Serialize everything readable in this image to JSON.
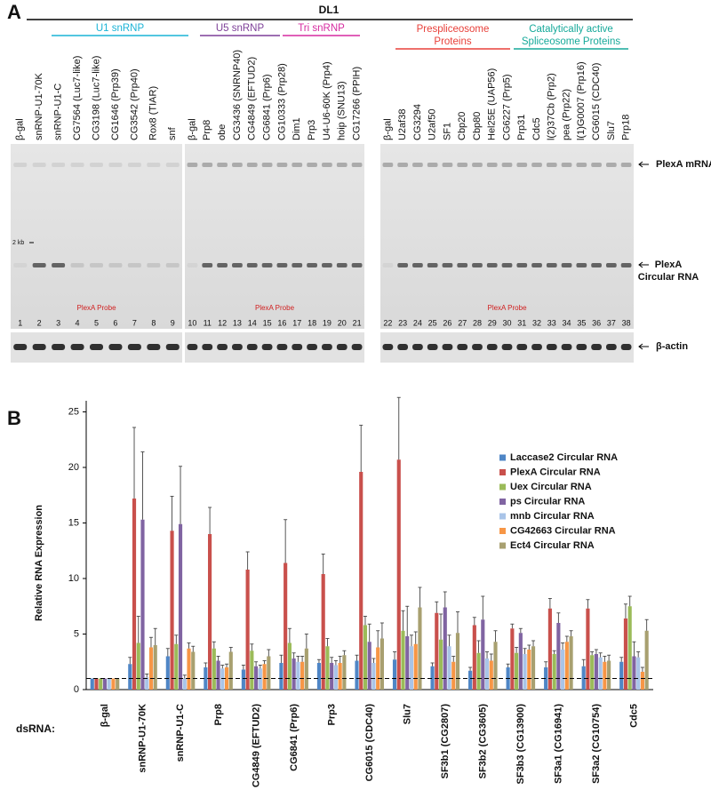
{
  "panel_a": {
    "label": "A",
    "construct": "DL1",
    "groups": [
      {
        "name": [
          "U1 snRNP"
        ],
        "color": "#1ab3d6"
      },
      {
        "name": [
          "U5 snRNP"
        ],
        "color": "#7d3f98"
      },
      {
        "name": [
          "Tri snRNP"
        ],
        "color": "#d62ba0"
      },
      {
        "name": [
          "Prespliceosome",
          "Proteins"
        ],
        "color": "#e8403a"
      },
      {
        "name": [
          "Catalytically active",
          "Spliceosome Proteins"
        ],
        "color": "#16a99a"
      }
    ],
    "gels": [
      {
        "probe": "PlexA Probe",
        "lanes": [
          {
            "label": "β-gal",
            "number": 1
          },
          {
            "label": "snRNP-U1-70K",
            "number": 2
          },
          {
            "label": "snRNP-U1-C",
            "number": 3
          },
          {
            "label": "CG7564 (Luc7-like)",
            "number": 4
          },
          {
            "label": "CG3198 (Luc7-like)",
            "number": 5
          },
          {
            "label": "CG1646 (Prp39)",
            "number": 6
          },
          {
            "label": "CG3542 (Prp40)",
            "number": 7
          },
          {
            "label": "Rox8 (TIAR)",
            "number": 8
          },
          {
            "label": "snf",
            "number": 9
          }
        ]
      },
      {
        "probe": "PlexA Probe",
        "lanes": [
          {
            "label": "β-gal",
            "number": 10
          },
          {
            "label": "Prp8",
            "number": 11
          },
          {
            "label": "obe",
            "number": 12
          },
          {
            "label": "CG3436 (SNRNP40)",
            "number": 13
          },
          {
            "label": "CG4849 (EFTUD2)",
            "number": 14
          },
          {
            "label": "CG6841 (Prp6)",
            "number": 15
          },
          {
            "label": "CG10333 (Prp28)",
            "number": 16
          },
          {
            "label": "Dim1",
            "number": 17
          },
          {
            "label": "Prp3",
            "number": 18
          },
          {
            "label": "U4-U6-60K (Prp4)",
            "number": 19
          },
          {
            "label": "hoip (SNU13)",
            "number": 20
          },
          {
            "label": "CG17266 (PPIH)",
            "number": 21
          }
        ]
      },
      {
        "probe": "PlexA Probe",
        "lanes": [
          {
            "label": "β-gal",
            "number": 22
          },
          {
            "label": "U2af38",
            "number": 23
          },
          {
            "label": "CG3294",
            "number": 24
          },
          {
            "label": "U2af50",
            "number": 25
          },
          {
            "label": "SF1",
            "number": 26
          },
          {
            "label": "Cbp20",
            "number": 27
          },
          {
            "label": "Cbp80",
            "number": 28
          },
          {
            "label": "Hel25E (UAP56)",
            "number": 29
          },
          {
            "label": "CG6227 (Prp5)",
            "number": 30
          },
          {
            "label": "Prp31",
            "number": 31
          },
          {
            "label": "Cdc5",
            "number": 32
          },
          {
            "label": "l(2)37Cb (Prp2)",
            "number": 33
          },
          {
            "label": "pea (Prp22)",
            "number": 34
          },
          {
            "label": "l(1)G0007 (Prp16)",
            "number": 35
          },
          {
            "label": "CG6015 (CDC40)",
            "number": 36
          },
          {
            "label": "Slu7",
            "number": 37
          },
          {
            "label": "Prp18",
            "number": 38
          }
        ]
      }
    ],
    "size_marker": "2 kb",
    "band_labels": {
      "mrna": [
        "PlexA mRNA"
      ],
      "circular": [
        "PlexA",
        "Circular RNA"
      ],
      "actin": [
        "β-actin"
      ]
    }
  },
  "chart_data": {
    "type": "bar",
    "panel_label": "B",
    "ylabel": "Relative RNA Expression",
    "xlabel": "dsRNA:",
    "categories": [
      "β-gal",
      "snRNP-U1-70K",
      "snRNP-U1-C",
      "Prp8",
      "CG4849 (EFTUD2)",
      "CG6841 (Prp6)",
      "Prp3",
      "CG6015 (CDC40)",
      "Slu7",
      "SF3b1 (CG2807)",
      "SF3b2 (CG3605)",
      "SF3b3 (CG13900)",
      "SF3a1 (CG16941)",
      "SF3a2 (CG10754)",
      "Cdc5"
    ],
    "series": [
      {
        "name": "Laccase2 Circular RNA",
        "color": "#4f86c6",
        "values": [
          1,
          2.3,
          3.0,
          2.0,
          1.8,
          2.4,
          2.4,
          2.6,
          2.7,
          2.1,
          1.7,
          2.0,
          2.0,
          2.1,
          2.5
        ],
        "errors": [
          0,
          0.6,
          0.7,
          0.4,
          0.4,
          0.7,
          0.3,
          0.5,
          0.7,
          0.3,
          0.3,
          0.3,
          0.5,
          0.6,
          0.4
        ]
      },
      {
        "name": "PlexA Circular RNA",
        "color": "#c9504c",
        "values": [
          1,
          17.2,
          14.3,
          14.0,
          10.8,
          11.4,
          10.4,
          19.6,
          20.7,
          6.9,
          5.8,
          5.5,
          7.3,
          7.3,
          6.4
        ],
        "errors": [
          0,
          6.4,
          3.1,
          2.4,
          1.6,
          3.9,
          1.8,
          4.2,
          5.6,
          1.0,
          0.7,
          0.4,
          0.9,
          0.8,
          1.3
        ]
      },
      {
        "name": "Uex Circular RNA",
        "color": "#9bbb59",
        "values": [
          1,
          4.2,
          4.1,
          3.7,
          3.5,
          4.2,
          3.9,
          5.8,
          5.3,
          4.5,
          3.3,
          3.3,
          3.2,
          3.1,
          7.5
        ],
        "errors": [
          0,
          2.4,
          0.8,
          0.6,
          0.6,
          1.3,
          0.7,
          0.8,
          1.8,
          2.3,
          1.1,
          0.5,
          0.3,
          0.3,
          0.9
        ]
      },
      {
        "name": "ps Circular RNA",
        "color": "#8064a2",
        "values": [
          1,
          15.3,
          14.9,
          2.6,
          2.1,
          2.8,
          2.4,
          4.3,
          4.8,
          7.4,
          6.3,
          5.1,
          6.0,
          3.2,
          3.0
        ],
        "errors": [
          0,
          6.1,
          5.2,
          0.4,
          0.4,
          0.5,
          0.5,
          1.6,
          2.7,
          1.4,
          2.1,
          0.4,
          0.9,
          0.4,
          1.3
        ]
      },
      {
        "name": "mnb Circular RNA",
        "color": "#a9c4e8",
        "values": [
          1,
          1.1,
          1.0,
          1.9,
          1.9,
          2.5,
          2.2,
          2.4,
          3.9,
          3.9,
          2.8,
          3.2,
          3.6,
          2.9,
          2.9
        ],
        "errors": [
          0,
          0.3,
          0.3,
          0.3,
          0.3,
          0.5,
          0.4,
          0.4,
          1.0,
          1.0,
          0.6,
          0.5,
          0.6,
          0.4,
          0.5
        ]
      },
      {
        "name": "CG42663 Circular RNA",
        "color": "#f79646",
        "values": [
          1,
          3.8,
          3.7,
          2.0,
          2.3,
          2.5,
          2.4,
          3.8,
          4.1,
          2.5,
          2.6,
          3.6,
          4.3,
          2.5,
          1.6
        ],
        "errors": [
          0,
          0.9,
          0.5,
          0.3,
          0.3,
          0.5,
          0.6,
          1.5,
          1.1,
          0.5,
          0.6,
          0.4,
          0.5,
          0.5,
          0.4
        ]
      },
      {
        "name": "Ect4 Circular RNA",
        "color": "#a8a070",
        "values": [
          1,
          4.0,
          3.4,
          3.4,
          3.0,
          3.7,
          3.1,
          4.6,
          7.4,
          5.1,
          4.3,
          3.9,
          4.8,
          2.6,
          5.3
        ],
        "errors": [
          0,
          1.5,
          0.5,
          0.4,
          0.6,
          1.3,
          0.4,
          1.4,
          1.8,
          1.9,
          1.0,
          0.5,
          0.5,
          0.5,
          1.0
        ]
      }
    ],
    "ylim": [
      0,
      26
    ],
    "yticks": [
      0,
      5,
      10,
      15,
      20,
      25
    ],
    "reference_line": 1,
    "legend": "upper right"
  }
}
